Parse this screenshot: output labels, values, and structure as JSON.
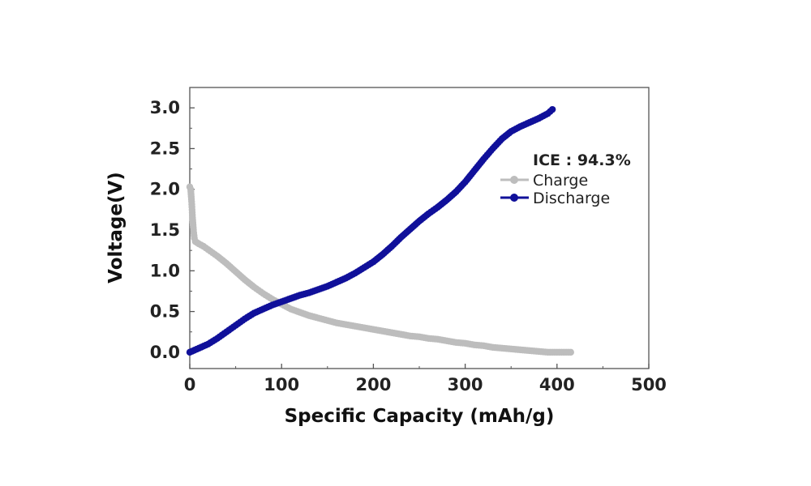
{
  "chart_data": {
    "type": "line",
    "title": "",
    "xlabel": "Specific Capacity (mAh/g)",
    "ylabel": "Voltage(V)",
    "xlim": [
      0,
      500
    ],
    "ylim": [
      -0.2,
      3.25
    ],
    "xticks": [
      0,
      100,
      200,
      300,
      400,
      500
    ],
    "xtick_labels": [
      "0",
      "100",
      "200",
      "300",
      "400",
      "500"
    ],
    "yticks": [
      0.0,
      0.5,
      1.0,
      1.5,
      2.0,
      2.5,
      3.0
    ],
    "ytick_labels": [
      "0.0",
      "0.5",
      "1.0",
      "1.5",
      "2.0",
      "2.5",
      "3.0"
    ],
    "grid": false,
    "legend_position": "right",
    "annotation": "ICE : 94.3%",
    "series": [
      {
        "name": "Charge",
        "color": "#bdbdbd",
        "marker": "circle",
        "x": [
          0,
          1,
          2,
          3,
          4,
          5,
          6,
          10,
          15,
          20,
          30,
          40,
          50,
          60,
          70,
          80,
          90,
          100,
          110,
          120,
          130,
          140,
          150,
          160,
          170,
          180,
          190,
          200,
          210,
          220,
          230,
          240,
          250,
          260,
          270,
          280,
          290,
          300,
          310,
          320,
          330,
          340,
          350,
          360,
          370,
          380,
          390,
          400,
          405,
          410,
          415
        ],
        "y": [
          2.03,
          2.0,
          1.85,
          1.65,
          1.5,
          1.4,
          1.36,
          1.33,
          1.3,
          1.26,
          1.18,
          1.09,
          0.99,
          0.89,
          0.8,
          0.72,
          0.65,
          0.59,
          0.53,
          0.49,
          0.45,
          0.42,
          0.39,
          0.36,
          0.34,
          0.32,
          0.3,
          0.28,
          0.26,
          0.24,
          0.22,
          0.2,
          0.19,
          0.17,
          0.16,
          0.14,
          0.12,
          0.11,
          0.09,
          0.08,
          0.06,
          0.05,
          0.04,
          0.03,
          0.02,
          0.01,
          0.0,
          0.0,
          0.0,
          0.0,
          0.0
        ]
      },
      {
        "name": "Discharge",
        "color": "#10109a",
        "marker": "circle",
        "x": [
          0,
          10,
          20,
          30,
          40,
          50,
          60,
          70,
          80,
          90,
          100,
          110,
          120,
          130,
          140,
          150,
          160,
          170,
          180,
          190,
          200,
          210,
          220,
          230,
          240,
          250,
          260,
          270,
          280,
          290,
          300,
          310,
          320,
          330,
          340,
          350,
          360,
          370,
          380,
          390,
          395
        ],
        "y": [
          0.0,
          0.05,
          0.1,
          0.17,
          0.25,
          0.33,
          0.41,
          0.48,
          0.53,
          0.58,
          0.62,
          0.66,
          0.7,
          0.73,
          0.77,
          0.81,
          0.86,
          0.91,
          0.97,
          1.04,
          1.11,
          1.2,
          1.3,
          1.41,
          1.51,
          1.61,
          1.7,
          1.78,
          1.87,
          1.97,
          2.09,
          2.23,
          2.37,
          2.5,
          2.62,
          2.71,
          2.77,
          2.82,
          2.87,
          2.93,
          2.98
        ]
      }
    ]
  }
}
